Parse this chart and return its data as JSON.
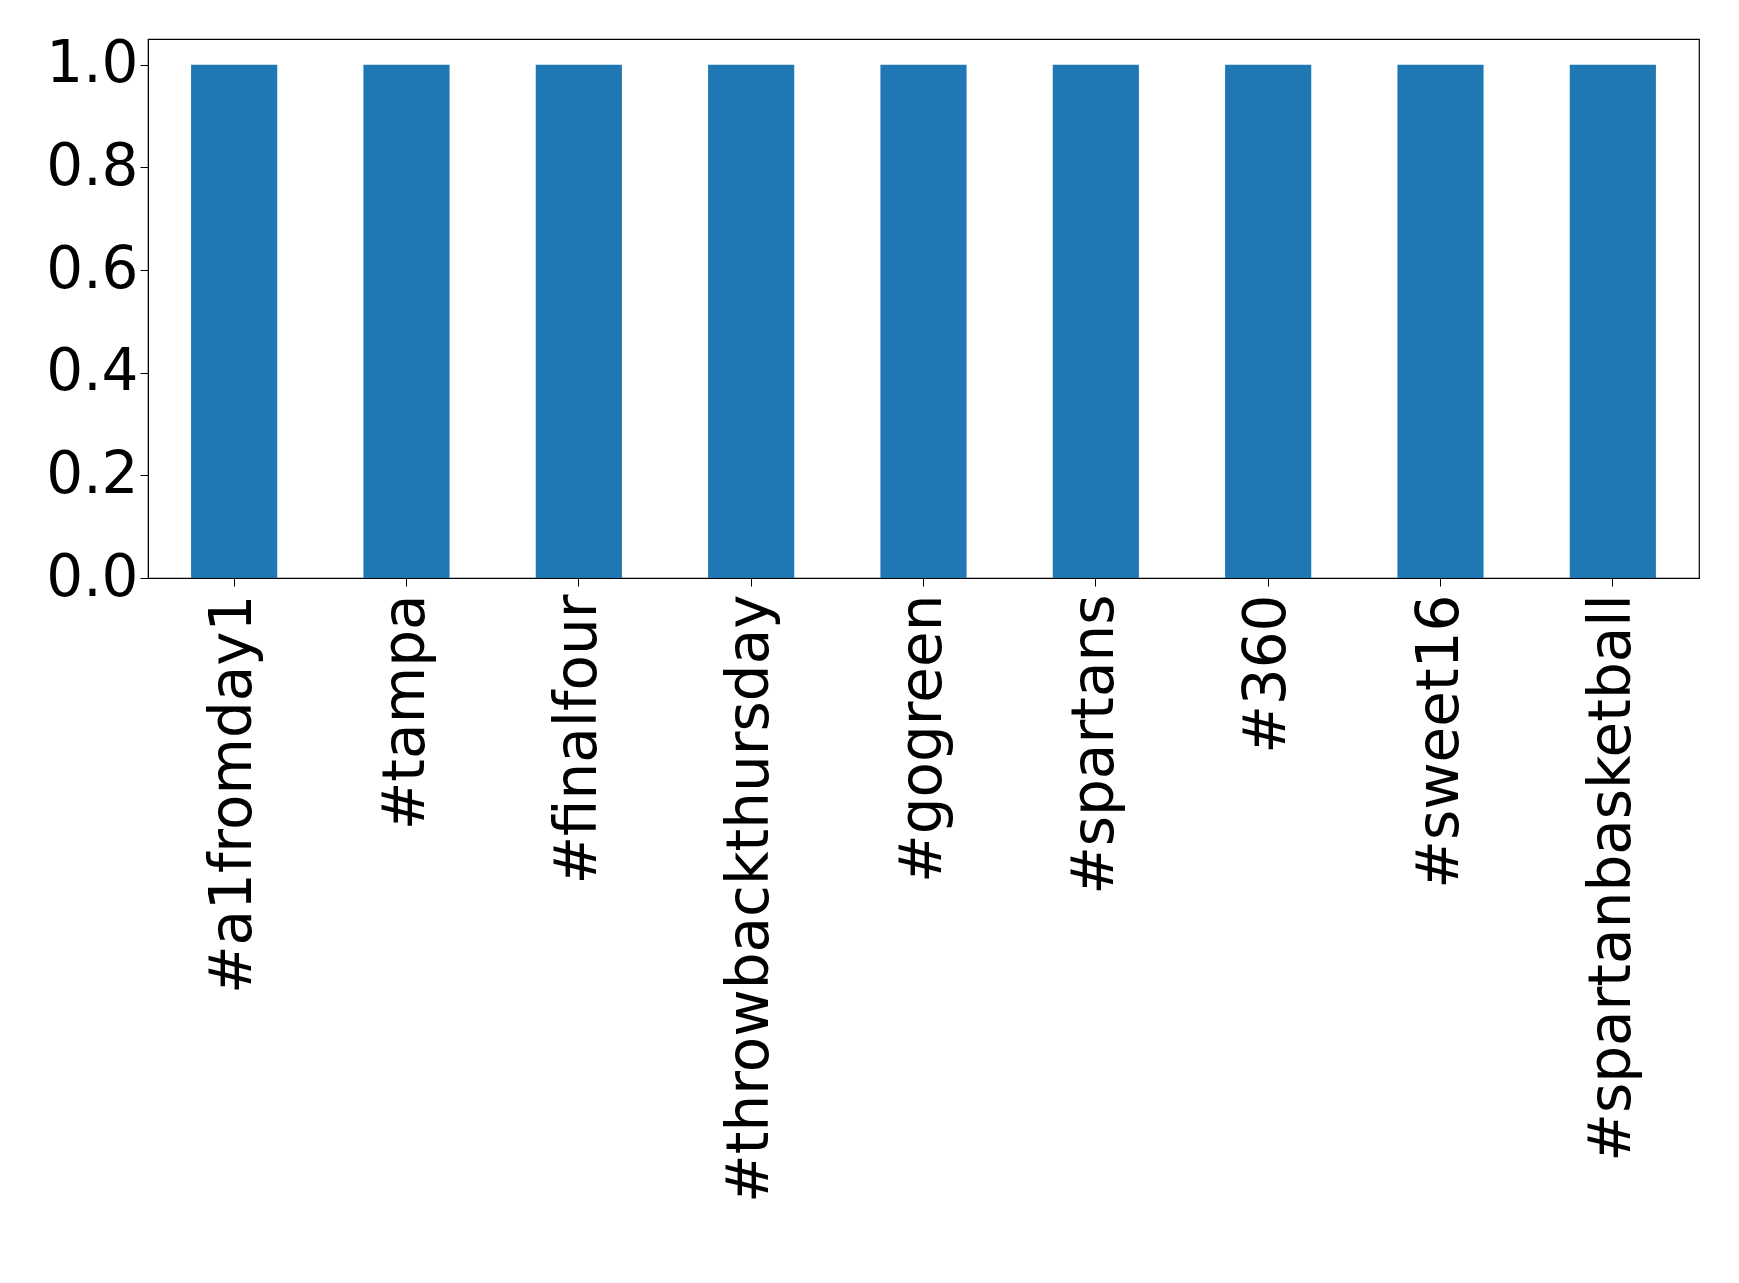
{
  "chart_data": {
    "type": "bar",
    "categories": [
      "#a1fromday1",
      "#tampa",
      "#finalfour",
      "#throwbackthursday",
      "#gogreen",
      "#spartans",
      "#360",
      "#sweet16",
      "#spartanbasketball"
    ],
    "values": [
      1.0,
      1.0,
      1.0,
      1.0,
      1.0,
      1.0,
      1.0,
      1.0,
      1.0
    ],
    "color": "#1f77b4",
    "ylim": [
      0,
      1.05
    ],
    "yticks": [
      {
        "value": 0,
        "label": "0.0"
      },
      0.2,
      0.4,
      0.6,
      0.8,
      {
        "value": 1,
        "label": "1.0"
      }
    ],
    "grid": false
  }
}
